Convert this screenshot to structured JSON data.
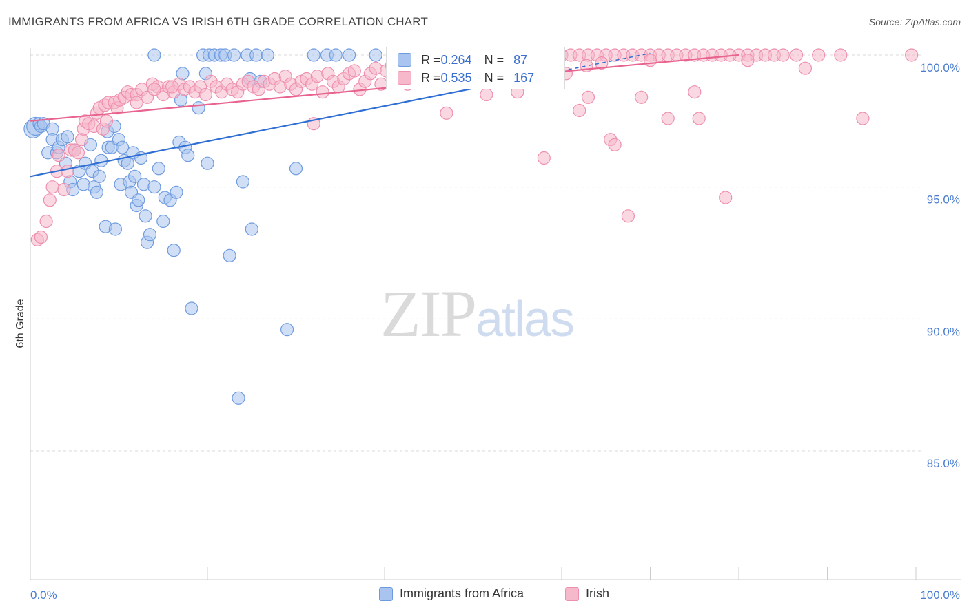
{
  "title": "IMMIGRANTS FROM AFRICA VS IRISH 6TH GRADE CORRELATION CHART",
  "source": "Source: ZipAtlas.com",
  "watermark": {
    "zip": "ZIP",
    "atlas": "atlas"
  },
  "stats": {
    "row1": {
      "r_label": "R = ",
      "r_value": "0.264",
      "n_label": "N = ",
      "n_value": "87"
    },
    "row2": {
      "r_label": "R = ",
      "r_value": "0.535",
      "n_label": "N = ",
      "n_value": "167"
    }
  },
  "legend": {
    "africa": "Immigrants from Africa",
    "irish": "Irish"
  },
  "colors": {
    "africa_fill": "#a9c4ef",
    "africa_stroke": "#6e9be0",
    "africa_line": "#2f6fd3",
    "irish_fill": "#f6b8cb",
    "irish_stroke": "#ee8fae",
    "irish_line": "#e8648f",
    "grid": "#d8d8d8",
    "axis_text": "#4a7cd0"
  },
  "chart_data": {
    "type": "scatter",
    "title": "IMMIGRANTS FROM AFRICA VS IRISH 6TH GRADE CORRELATION CHART",
    "xlabel": "",
    "ylabel": "6th Grade",
    "xlim": [
      0,
      100
    ],
    "ylim": [
      80.5,
      100.8
    ],
    "x_tick_labels": [
      "0.0%",
      "100.0%"
    ],
    "y_ticks": [
      85,
      90,
      95,
      100
    ],
    "y_tick_labels": [
      "85.0%",
      "90.0%",
      "95.0%",
      "100.0%"
    ],
    "grid": true,
    "series": [
      {
        "name": "Immigrants from Africa",
        "R": 0.264,
        "N": 87,
        "trend": {
          "x": [
            0,
            60
          ],
          "y": [
            95.4,
            99.4
          ]
        },
        "points": [
          [
            0.3,
            97.2
          ],
          [
            0.6,
            97.3
          ],
          [
            1.0,
            97.4
          ],
          [
            1.2,
            97.3
          ],
          [
            1.5,
            97.4
          ],
          [
            2.5,
            97.2
          ],
          [
            2.0,
            96.3
          ],
          [
            2.5,
            96.8
          ],
          [
            3.0,
            96.3
          ],
          [
            3.2,
            96.5
          ],
          [
            3.6,
            96.8
          ],
          [
            4.2,
            96.9
          ],
          [
            4.0,
            95.9
          ],
          [
            4.5,
            95.2
          ],
          [
            4.8,
            94.9
          ],
          [
            5.0,
            96.4
          ],
          [
            5.5,
            95.6
          ],
          [
            6.0,
            95.1
          ],
          [
            6.2,
            95.9
          ],
          [
            6.8,
            96.6
          ],
          [
            7.0,
            95.6
          ],
          [
            7.2,
            95.0
          ],
          [
            7.5,
            94.8
          ],
          [
            7.8,
            95.4
          ],
          [
            8.0,
            96.0
          ],
          [
            8.5,
            93.5
          ],
          [
            8.7,
            97.1
          ],
          [
            8.8,
            96.5
          ],
          [
            9.2,
            96.5
          ],
          [
            9.5,
            97.3
          ],
          [
            9.6,
            93.4
          ],
          [
            10.0,
            96.8
          ],
          [
            10.2,
            95.1
          ],
          [
            10.4,
            96.5
          ],
          [
            10.6,
            96.0
          ],
          [
            11.0,
            95.9
          ],
          [
            11.2,
            95.2
          ],
          [
            11.4,
            94.8
          ],
          [
            11.6,
            96.3
          ],
          [
            11.8,
            95.4
          ],
          [
            12.0,
            94.3
          ],
          [
            12.2,
            94.5
          ],
          [
            12.5,
            96.1
          ],
          [
            12.8,
            95.1
          ],
          [
            13.0,
            93.9
          ],
          [
            13.2,
            92.9
          ],
          [
            13.5,
            93.2
          ],
          [
            14.0,
            95.0
          ],
          [
            14.5,
            95.7
          ],
          [
            15.0,
            93.7
          ],
          [
            15.2,
            94.6
          ],
          [
            15.8,
            94.5
          ],
          [
            16.2,
            92.6
          ],
          [
            16.5,
            94.8
          ],
          [
            16.8,
            96.7
          ],
          [
            17.0,
            98.3
          ],
          [
            17.2,
            99.3
          ],
          [
            17.5,
            96.5
          ],
          [
            17.8,
            96.2
          ],
          [
            18.2,
            90.4
          ],
          [
            19.0,
            98.0
          ],
          [
            19.5,
            100.0
          ],
          [
            19.8,
            99.3
          ],
          [
            20.0,
            95.9
          ],
          [
            20.2,
            100.0
          ],
          [
            20.8,
            100.0
          ],
          [
            21.5,
            100.0
          ],
          [
            22.0,
            100.0
          ],
          [
            22.5,
            92.4
          ],
          [
            23.0,
            100.0
          ],
          [
            24.5,
            100.0
          ],
          [
            25.0,
            93.4
          ],
          [
            25.5,
            100.0
          ],
          [
            26.8,
            100.0
          ],
          [
            23.5,
            87.0
          ],
          [
            24.0,
            95.2
          ],
          [
            24.8,
            99.1
          ],
          [
            26.0,
            99.0
          ],
          [
            29.0,
            89.6
          ],
          [
            30.0,
            95.7
          ],
          [
            32.0,
            100.0
          ],
          [
            33.5,
            100.0
          ],
          [
            34.5,
            100.0
          ],
          [
            36.0,
            100.0
          ],
          [
            39.0,
            100.0
          ],
          [
            42.0,
            100.0
          ],
          [
            14.0,
            100.0
          ]
        ]
      },
      {
        "name": "Irish",
        "R": 0.535,
        "N": 167,
        "trend": {
          "x": [
            0,
            80
          ],
          "y": [
            97.5,
            100.0
          ]
        },
        "points": [
          [
            0.8,
            93.0
          ],
          [
            1.2,
            93.1
          ],
          [
            1.8,
            93.7
          ],
          [
            2.2,
            94.5
          ],
          [
            2.5,
            95.0
          ],
          [
            3.0,
            95.6
          ],
          [
            3.2,
            96.2
          ],
          [
            3.8,
            94.9
          ],
          [
            4.2,
            95.6
          ],
          [
            4.6,
            96.4
          ],
          [
            5.0,
            96.4
          ],
          [
            5.4,
            96.3
          ],
          [
            5.8,
            96.8
          ],
          [
            6.0,
            97.2
          ],
          [
            6.2,
            97.5
          ],
          [
            6.6,
            97.4
          ],
          [
            7.2,
            97.3
          ],
          [
            7.5,
            97.8
          ],
          [
            7.8,
            98.0
          ],
          [
            8.2,
            97.2
          ],
          [
            8.4,
            98.1
          ],
          [
            8.6,
            97.5
          ],
          [
            8.8,
            98.2
          ],
          [
            9.5,
            98.2
          ],
          [
            9.8,
            98.0
          ],
          [
            10.1,
            98.3
          ],
          [
            10.6,
            98.4
          ],
          [
            11.0,
            98.6
          ],
          [
            11.4,
            98.5
          ],
          [
            12.0,
            98.5
          ],
          [
            12.6,
            98.7
          ],
          [
            13.2,
            98.4
          ],
          [
            13.8,
            98.9
          ],
          [
            14.4,
            98.8
          ],
          [
            15.0,
            98.5
          ],
          [
            15.6,
            98.8
          ],
          [
            16.2,
            98.6
          ],
          [
            16.8,
            98.9
          ],
          [
            17.4,
            98.7
          ],
          [
            18.0,
            98.8
          ],
          [
            18.6,
            98.6
          ],
          [
            19.2,
            98.8
          ],
          [
            19.8,
            98.5
          ],
          [
            20.4,
            99.0
          ],
          [
            21.0,
            98.8
          ],
          [
            21.6,
            98.6
          ],
          [
            22.2,
            98.9
          ],
          [
            22.8,
            98.7
          ],
          [
            23.4,
            98.6
          ],
          [
            24.0,
            98.9
          ],
          [
            24.6,
            99.0
          ],
          [
            25.2,
            98.8
          ],
          [
            25.8,
            98.7
          ],
          [
            26.4,
            99.0
          ],
          [
            27.0,
            98.9
          ],
          [
            27.6,
            99.1
          ],
          [
            28.2,
            98.8
          ],
          [
            28.8,
            99.2
          ],
          [
            29.4,
            98.9
          ],
          [
            30.0,
            98.7
          ],
          [
            30.6,
            99.0
          ],
          [
            31.2,
            99.1
          ],
          [
            31.8,
            98.9
          ],
          [
            32.4,
            99.2
          ],
          [
            33.0,
            98.6
          ],
          [
            33.6,
            99.3
          ],
          [
            34.2,
            99.0
          ],
          [
            34.8,
            98.8
          ],
          [
            35.4,
            99.1
          ],
          [
            36.0,
            99.3
          ],
          [
            36.6,
            99.4
          ],
          [
            37.2,
            98.7
          ],
          [
            37.8,
            99.0
          ],
          [
            38.4,
            99.3
          ],
          [
            39.0,
            99.5
          ],
          [
            39.6,
            98.9
          ],
          [
            40.2,
            99.4
          ],
          [
            40.8,
            99.6
          ],
          [
            41.4,
            99.2
          ],
          [
            42.0,
            99.5
          ],
          [
            42.6,
            98.9
          ],
          [
            43.2,
            99.7
          ],
          [
            43.8,
            99.5
          ],
          [
            44.4,
            99.3
          ],
          [
            45.0,
            99.8
          ],
          [
            45.6,
            99.6
          ],
          [
            46.2,
            100.0
          ],
          [
            46.8,
            99.7
          ],
          [
            47.4,
            99.9
          ],
          [
            48.0,
            100.0
          ],
          [
            48.6,
            99.8
          ],
          [
            49.2,
            100.0
          ],
          [
            49.8,
            99.9
          ],
          [
            50.4,
            100.0
          ],
          [
            51.0,
            100.0
          ],
          [
            51.6,
            99.8
          ],
          [
            52.2,
            100.0
          ],
          [
            52.8,
            100.0
          ],
          [
            53.4,
            100.0
          ],
          [
            54.0,
            100.0
          ],
          [
            54.6,
            100.0
          ],
          [
            55.2,
            100.0
          ],
          [
            55.8,
            100.0
          ],
          [
            56.4,
            100.0
          ],
          [
            57.0,
            100.0
          ],
          [
            57.6,
            100.0
          ],
          [
            58.2,
            100.0
          ],
          [
            58.8,
            100.0
          ],
          [
            59.4,
            100.0
          ],
          [
            60.0,
            100.0
          ],
          [
            61.0,
            100.0
          ],
          [
            62.0,
            100.0
          ],
          [
            63.0,
            100.0
          ],
          [
            64.0,
            100.0
          ],
          [
            65.0,
            100.0
          ],
          [
            66.0,
            100.0
          ],
          [
            67.0,
            100.0
          ],
          [
            68.0,
            100.0
          ],
          [
            69.0,
            100.0
          ],
          [
            70.0,
            100.0
          ],
          [
            71.0,
            100.0
          ],
          [
            72.0,
            100.0
          ],
          [
            73.0,
            100.0
          ],
          [
            74.0,
            100.0
          ],
          [
            75.0,
            100.0
          ],
          [
            76.0,
            100.0
          ],
          [
            77.0,
            100.0
          ],
          [
            78.0,
            100.0
          ],
          [
            79.0,
            100.0
          ],
          [
            80.0,
            100.0
          ],
          [
            81.0,
            100.0
          ],
          [
            82.0,
            100.0
          ],
          [
            83.0,
            100.0
          ],
          [
            84.0,
            100.0
          ],
          [
            85.0,
            100.0
          ],
          [
            86.5,
            100.0
          ],
          [
            89.0,
            100.0
          ],
          [
            91.5,
            100.0
          ],
          [
            99.5,
            100.0
          ],
          [
            47.0,
            97.8
          ],
          [
            51.5,
            98.5
          ],
          [
            55.0,
            98.6
          ],
          [
            56.0,
            99.1
          ],
          [
            58.0,
            96.1
          ],
          [
            60.5,
            99.3
          ],
          [
            62.0,
            97.9
          ],
          [
            63.0,
            98.4
          ],
          [
            65.5,
            96.8
          ],
          [
            66.0,
            96.6
          ],
          [
            62.8,
            99.6
          ],
          [
            64.5,
            99.7
          ],
          [
            69.0,
            98.4
          ],
          [
            72.0,
            97.6
          ],
          [
            75.5,
            97.6
          ],
          [
            81.0,
            99.8
          ],
          [
            87.5,
            99.5
          ],
          [
            94.0,
            97.6
          ],
          [
            75.0,
            98.6
          ],
          [
            67.5,
            93.9
          ],
          [
            50.0,
            99.4
          ],
          [
            53.0,
            99.5
          ],
          [
            70.0,
            99.8
          ],
          [
            78.5,
            94.6
          ],
          [
            32.0,
            97.4
          ],
          [
            12.0,
            98.2
          ],
          [
            14.0,
            98.7
          ],
          [
            16.0,
            98.8
          ]
        ]
      }
    ]
  }
}
